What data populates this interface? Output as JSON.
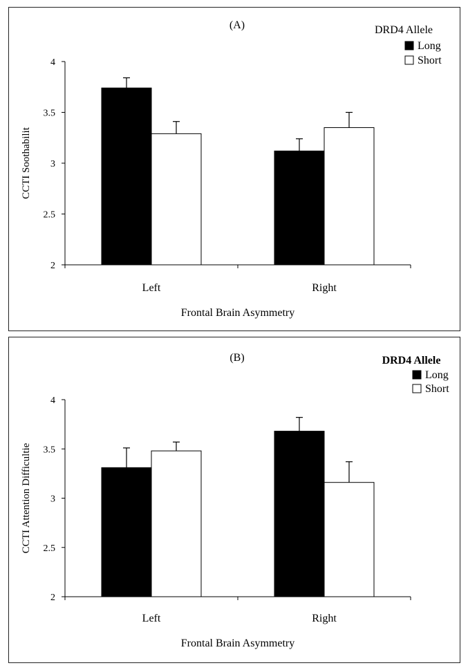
{
  "colors": {
    "long": "#000000",
    "short": "#ffffff",
    "stroke": "#000000"
  },
  "chart_data": [
    {
      "type": "bar",
      "title": "(A)",
      "xlabel": "Frontal Brain Asymmetry",
      "ylabel": "CCTI Soothabilit",
      "categories": [
        "Left",
        "Right"
      ],
      "ylim": [
        2,
        4
      ],
      "yticks": [
        "2",
        "2.5",
        "3",
        "3.5",
        "4"
      ],
      "ytick_values": [
        2,
        2.5,
        3,
        3.5,
        4
      ],
      "legend_title": "DRD4 Allele",
      "legend_title_bold": false,
      "series": [
        {
          "name": "Long",
          "values": [
            3.74,
            3.12
          ],
          "errors": [
            0.1,
            0.12
          ]
        },
        {
          "name": "Short",
          "values": [
            3.29,
            3.35
          ],
          "errors": [
            0.12,
            0.15
          ]
        }
      ]
    },
    {
      "type": "bar",
      "title": "(B)",
      "xlabel": "Frontal Brain Asymmetry",
      "ylabel": "CCTI Attention Difficultie",
      "categories": [
        "Left",
        "Right"
      ],
      "ylim": [
        2,
        4
      ],
      "yticks": [
        "2",
        "2.5",
        "3",
        "3.5",
        "4"
      ],
      "ytick_values": [
        2,
        2.5,
        3,
        3.5,
        4
      ],
      "legend_title": "DRD4 Allele",
      "legend_title_bold": true,
      "series": [
        {
          "name": "Long",
          "values": [
            3.31,
            3.68
          ],
          "errors": [
            0.2,
            0.14
          ]
        },
        {
          "name": "Short",
          "values": [
            3.48,
            3.16
          ],
          "errors": [
            0.09,
            0.21
          ]
        }
      ]
    }
  ]
}
